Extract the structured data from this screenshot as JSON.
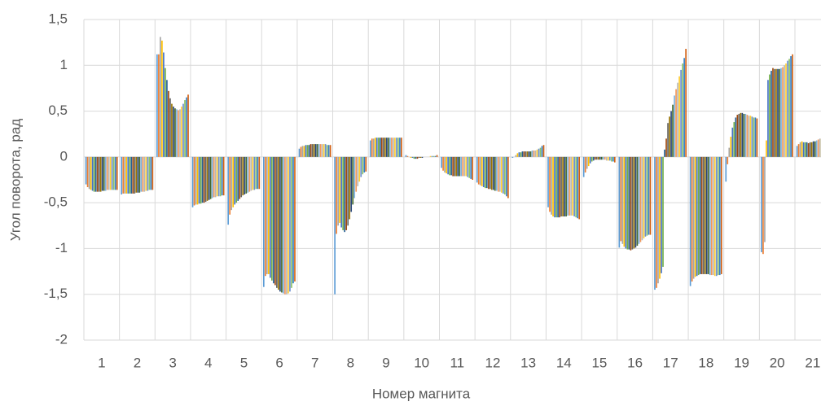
{
  "chart_data": {
    "type": "bar",
    "x_label": "Номер магнита",
    "y_label": "Угол поворота, рад",
    "categories": [
      "1",
      "2",
      "3",
      "4",
      "5",
      "6",
      "7",
      "8",
      "9",
      "10",
      "11",
      "12",
      "13",
      "14",
      "15",
      "16",
      "17",
      "18",
      "19",
      "20",
      "21"
    ],
    "ylim": [
      -2,
      1.5
    ],
    "yticks": [
      -2,
      {
        "value": -1.5,
        "label": "-1,5"
      },
      -1,
      {
        "value": -0.5,
        "label": "-0,5"
      },
      0,
      {
        "value": 0.5,
        "label": "0,5"
      },
      1,
      {
        "value": 1.5,
        "label": "1,5"
      }
    ],
    "grid": true,
    "series": [
      {
        "color": "#5B9BD5",
        "values": [
          -0.3,
          -0.41,
          1.12,
          -0.55,
          -0.74,
          -1.42,
          0.09,
          -1.5,
          0.18,
          0.02,
          -0.12,
          -0.28,
          -0.01,
          -0.55,
          -0.22,
          -0.99,
          -1.45,
          -1.41,
          -0.27,
          -1.04,
          0.12
        ]
      },
      {
        "color": "#ED7D31",
        "values": [
          -0.33,
          -0.4,
          1.12,
          -0.53,
          -0.63,
          -1.3,
          0.11,
          -0.84,
          0.2,
          0.01,
          -0.15,
          -0.3,
          0,
          -0.6,
          -0.17,
          -0.92,
          -1.43,
          -1.36,
          -0.08,
          -1.06,
          0.14
        ]
      },
      {
        "color": "#A5A5A5",
        "values": [
          -0.35,
          -0.4,
          1.31,
          -0.52,
          -0.58,
          -1.28,
          0.12,
          -0.75,
          0.2,
          0,
          -0.17,
          -0.31,
          0.02,
          -0.63,
          -0.13,
          -0.95,
          -1.38,
          -1.33,
          0.1,
          -0.93,
          0.16
        ]
      },
      {
        "color": "#FFC000",
        "values": [
          -0.36,
          -0.4,
          1.27,
          -0.52,
          -0.55,
          -1.28,
          0.12,
          -0.72,
          0.21,
          -0.01,
          -0.18,
          -0.32,
          0.04,
          -0.65,
          -0.1,
          -0.98,
          -1.33,
          -1.31,
          0.22,
          0.18,
          0.17
        ]
      },
      {
        "color": "#4472C4",
        "values": [
          -0.37,
          -0.4,
          1.14,
          -0.51,
          -0.52,
          -1.32,
          0.13,
          -0.77,
          0.21,
          -0.01,
          -0.19,
          -0.33,
          0.05,
          -0.66,
          -0.07,
          -1.0,
          -1.27,
          -1.3,
          0.32,
          0.84,
          0.16
        ]
      },
      {
        "color": "#70AD47",
        "values": [
          -0.38,
          -0.4,
          0.97,
          -0.51,
          -0.5,
          -1.35,
          0.13,
          -0.8,
          0.21,
          -0.02,
          -0.2,
          -0.34,
          0.05,
          -0.66,
          -0.05,
          -1.01,
          -1.2,
          -1.29,
          0.38,
          0.9,
          0.16
        ]
      },
      {
        "color": "#255E91",
        "values": [
          -0.38,
          -0.4,
          0.84,
          -0.5,
          -0.48,
          -1.38,
          0.13,
          -0.82,
          0.21,
          -0.02,
          -0.2,
          -0.34,
          0.06,
          -0.66,
          -0.04,
          -1.01,
          0.08,
          -1.28,
          0.43,
          0.94,
          0.16
        ]
      },
      {
        "color": "#9E480E",
        "values": [
          -0.38,
          -0.4,
          0.72,
          -0.5,
          -0.46,
          -1.4,
          0.14,
          -0.8,
          0.21,
          -0.02,
          -0.21,
          -0.35,
          0.06,
          -0.66,
          -0.03,
          -1.02,
          0.2,
          -1.28,
          0.46,
          0.97,
          0.15
        ]
      },
      {
        "color": "#636363",
        "values": [
          -0.38,
          -0.4,
          0.64,
          -0.49,
          -0.44,
          -1.43,
          0.14,
          -0.75,
          0.21,
          -0.01,
          -0.21,
          -0.35,
          0.06,
          -0.65,
          -0.03,
          -1.01,
          0.37,
          -1.28,
          0.47,
          0.96,
          0.16
        ]
      },
      {
        "color": "#997300",
        "values": [
          -0.38,
          -0.39,
          0.58,
          -0.48,
          -0.42,
          -1.45,
          0.14,
          -0.68,
          0.21,
          -0.01,
          -0.21,
          -0.36,
          0.06,
          -0.65,
          -0.03,
          -1.0,
          0.44,
          -1.28,
          0.48,
          0.96,
          0.16
        ]
      },
      {
        "color": "#264478",
        "values": [
          -0.37,
          -0.39,
          0.55,
          -0.47,
          -0.41,
          -1.47,
          0.14,
          -0.6,
          0.21,
          -0.01,
          -0.21,
          -0.36,
          0.06,
          -0.65,
          -0.03,
          -0.99,
          0.5,
          -1.28,
          0.48,
          0.96,
          0.17
        ]
      },
      {
        "color": "#43682B",
        "values": [
          -0.37,
          -0.39,
          0.53,
          -0.46,
          -0.4,
          -1.48,
          0.14,
          -0.52,
          0.21,
          0,
          -0.21,
          -0.37,
          0.06,
          -0.65,
          -0.03,
          -0.97,
          0.57,
          -1.28,
          0.47,
          0.96,
          0.17
        ]
      },
      {
        "color": "#7CAFDD",
        "values": [
          -0.37,
          -0.38,
          0.52,
          -0.45,
          -0.39,
          -1.49,
          0.14,
          -0.45,
          0.21,
          0,
          -0.21,
          -0.37,
          0.07,
          -0.64,
          -0.03,
          -0.95,
          0.67,
          -1.29,
          0.47,
          0.97,
          0.18
        ]
      },
      {
        "color": "#F1975A",
        "values": [
          -0.36,
          -0.38,
          0.51,
          -0.44,
          -0.38,
          -1.5,
          0.14,
          -0.38,
          0.21,
          0,
          -0.21,
          -0.38,
          0.07,
          -0.64,
          -0.03,
          -0.93,
          0.74,
          -1.29,
          0.46,
          0.98,
          0.19
        ]
      },
      {
        "color": "#B7B7B7",
        "values": [
          -0.36,
          -0.38,
          0.52,
          -0.44,
          -0.37,
          -1.5,
          0.14,
          -0.32,
          0.21,
          0,
          -0.21,
          -0.38,
          0.07,
          -0.64,
          -0.04,
          -0.91,
          0.81,
          -1.29,
          0.45,
          1.0,
          0.2
        ]
      },
      {
        "color": "#FFCD33",
        "values": [
          -0.36,
          -0.37,
          0.55,
          -0.43,
          -0.36,
          -1.49,
          0.14,
          -0.27,
          0.21,
          0.01,
          -0.21,
          -0.39,
          0.08,
          -0.64,
          -0.04,
          -0.89,
          0.88,
          -1.3,
          0.45,
          1.02,
          0.2
        ]
      },
      {
        "color": "#698ED0",
        "values": [
          -0.36,
          -0.37,
          0.58,
          -0.43,
          -0.36,
          -1.47,
          0.14,
          -0.22,
          0.21,
          0.01,
          -0.22,
          -0.4,
          0.09,
          -0.65,
          -0.04,
          -0.87,
          0.95,
          -1.3,
          0.44,
          1.05,
          0.21
        ]
      },
      {
        "color": "#8CC168",
        "values": [
          -0.36,
          -0.36,
          0.62,
          -0.43,
          -0.35,
          -1.43,
          0.13,
          -0.19,
          0.21,
          0.01,
          -0.23,
          -0.41,
          0.1,
          -0.66,
          -0.05,
          -0.86,
          1.02,
          -1.29,
          0.43,
          1.07,
          0.21
        ]
      },
      {
        "color": "#327DC2",
        "values": [
          -0.36,
          -0.36,
          0.65,
          -0.42,
          -0.35,
          -1.38,
          0.13,
          -0.17,
          0.21,
          0.01,
          -0.24,
          -0.43,
          0.12,
          -0.67,
          -0.05,
          -0.85,
          1.08,
          -1.29,
          0.43,
          1.1,
          0.22
        ]
      },
      {
        "color": "#D26012",
        "values": [
          -0.36,
          -0.36,
          0.68,
          -0.42,
          -0.35,
          -1.36,
          0.13,
          -0.16,
          0.21,
          0.02,
          -0.25,
          -0.45,
          0.13,
          -0.68,
          -0.06,
          -0.85,
          1.18,
          -1.28,
          0.42,
          1.12,
          0.22
        ]
      }
    ]
  }
}
